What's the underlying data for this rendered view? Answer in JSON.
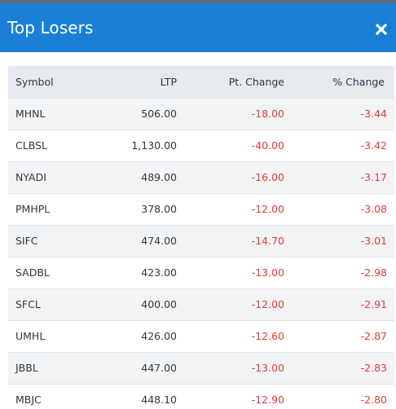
{
  "modal": {
    "title": "Top Losers",
    "close_glyph": "×",
    "close_icon": "close-icon"
  },
  "colors": {
    "header_bg": "#1a7fd6",
    "negative": "#e23b3b",
    "table_header_bg": "#e7ebf0"
  },
  "table": {
    "columns": [
      "Symbol",
      "LTP",
      "Pt. Change",
      "% Change"
    ],
    "rows": [
      {
        "symbol": "MHNL",
        "ltp": "506.00",
        "pt_change": "-18.00",
        "pct_change": "-3.44"
      },
      {
        "symbol": "CLBSL",
        "ltp": "1,130.00",
        "pt_change": "-40.00",
        "pct_change": "-3.42"
      },
      {
        "symbol": "NYADI",
        "ltp": "489.00",
        "pt_change": "-16.00",
        "pct_change": "-3.17"
      },
      {
        "symbol": "PMHPL",
        "ltp": "378.00",
        "pt_change": "-12.00",
        "pct_change": "-3.08"
      },
      {
        "symbol": "SIFC",
        "ltp": "474.00",
        "pt_change": "-14.70",
        "pct_change": "-3.01"
      },
      {
        "symbol": "SADBL",
        "ltp": "423.00",
        "pt_change": "-13.00",
        "pct_change": "-2.98"
      },
      {
        "symbol": "SFCL",
        "ltp": "400.00",
        "pt_change": "-12.00",
        "pct_change": "-2.91"
      },
      {
        "symbol": "UMHL",
        "ltp": "426.00",
        "pt_change": "-12.60",
        "pct_change": "-2.87"
      },
      {
        "symbol": "JBBL",
        "ltp": "447.00",
        "pt_change": "-13.00",
        "pct_change": "-2.83"
      },
      {
        "symbol": "MBJC",
        "ltp": "448.10",
        "pt_change": "-12.90",
        "pct_change": "-2.80"
      }
    ]
  }
}
